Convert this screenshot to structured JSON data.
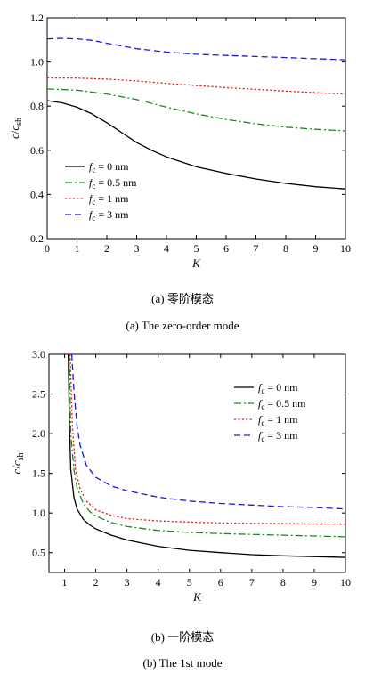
{
  "chart_data": [
    {
      "type": "line",
      "xlabel": "K",
      "ylabel": "c/c_sh",
      "xlim": [
        0,
        10
      ],
      "ylim": [
        0.2,
        1.2
      ],
      "xticks": [
        "0",
        "1",
        "2",
        "3",
        "4",
        "5",
        "6",
        "7",
        "8",
        "9",
        "10"
      ],
      "yticks": [
        "0.2",
        "0.4",
        "0.6",
        "0.8",
        "1.0",
        "1.2"
      ],
      "legend_position": "bottom-left",
      "captions": [
        "(a) 零阶模态",
        "(a) The zero-order mode"
      ],
      "series": [
        {
          "name": "f_c = 0 nm",
          "color": "#000000",
          "dash": "solid",
          "x": [
            0,
            0.5,
            1,
            1.5,
            2,
            2.5,
            3,
            3.5,
            4,
            5,
            6,
            7,
            8,
            9,
            10
          ],
          "y": [
            0.825,
            0.815,
            0.795,
            0.765,
            0.725,
            0.68,
            0.635,
            0.6,
            0.57,
            0.525,
            0.495,
            0.47,
            0.45,
            0.435,
            0.425
          ]
        },
        {
          "name": "f_c = 0.5 nm",
          "color": "#1a8a1a",
          "dash": "dashdot",
          "x": [
            0,
            1,
            2,
            3,
            4,
            5,
            6,
            7,
            8,
            9,
            10
          ],
          "y": [
            0.878,
            0.872,
            0.855,
            0.83,
            0.795,
            0.765,
            0.74,
            0.72,
            0.705,
            0.695,
            0.688
          ]
        },
        {
          "name": "f_c = 1 nm",
          "color": "#e02020",
          "dash": "dotted",
          "x": [
            0,
            1,
            2,
            3,
            4,
            5,
            6,
            7,
            8,
            9,
            10
          ],
          "y": [
            0.928,
            0.927,
            0.922,
            0.914,
            0.903,
            0.893,
            0.884,
            0.876,
            0.868,
            0.861,
            0.855
          ]
        },
        {
          "name": "f_c = 3 nm",
          "color": "#1a1adc",
          "dash": "dashed",
          "x": [
            0,
            0.5,
            1,
            1.5,
            2,
            3,
            4,
            5,
            6,
            7,
            8,
            9,
            10
          ],
          "y": [
            1.105,
            1.107,
            1.105,
            1.098,
            1.085,
            1.06,
            1.045,
            1.035,
            1.03,
            1.025,
            1.02,
            1.015,
            1.01
          ]
        }
      ]
    },
    {
      "type": "line",
      "xlabel": "K",
      "ylabel": "c/c_sh",
      "xlim": [
        0.5,
        10
      ],
      "ylim": [
        0.25,
        3.0
      ],
      "xticks": [
        "1",
        "2",
        "3",
        "4",
        "5",
        "6",
        "7",
        "8",
        "9",
        "10"
      ],
      "yticks": [
        "0.5",
        "1.0",
        "1.5",
        "2.0",
        "2.5",
        "3.0"
      ],
      "legend_position": "top-right",
      "captions": [
        "(b) 一阶模态",
        "(b) The 1st mode"
      ],
      "series": [
        {
          "name": "f_c = 0 nm",
          "color": "#000000",
          "dash": "solid",
          "x": [
            1.12,
            1.15,
            1.2,
            1.3,
            1.4,
            1.6,
            1.8,
            2,
            2.5,
            3,
            4,
            5,
            6,
            7,
            8,
            9,
            10
          ],
          "y": [
            3.0,
            2.2,
            1.55,
            1.2,
            1.05,
            0.92,
            0.85,
            0.8,
            0.72,
            0.66,
            0.58,
            0.53,
            0.5,
            0.475,
            0.46,
            0.45,
            0.44
          ]
        },
        {
          "name": "f_c = 0.5 nm",
          "color": "#1a8a1a",
          "dash": "dashdot",
          "x": [
            1.15,
            1.2,
            1.3,
            1.4,
            1.6,
            1.8,
            2,
            2.5,
            3,
            4,
            5,
            6,
            7,
            8,
            9,
            10
          ],
          "y": [
            3.0,
            2.0,
            1.55,
            1.32,
            1.12,
            1.02,
            0.96,
            0.88,
            0.83,
            0.78,
            0.755,
            0.74,
            0.73,
            0.72,
            0.71,
            0.7
          ]
        },
        {
          "name": "f_c = 1 nm",
          "color": "#e02020",
          "dash": "dotted",
          "x": [
            1.18,
            1.25,
            1.35,
            1.5,
            1.7,
            2,
            2.5,
            3,
            4,
            5,
            6,
            7,
            8,
            9,
            10
          ],
          "y": [
            3.0,
            2.1,
            1.55,
            1.3,
            1.15,
            1.04,
            0.97,
            0.93,
            0.9,
            0.885,
            0.875,
            0.87,
            0.865,
            0.862,
            0.86
          ]
        },
        {
          "name": "f_c = 3 nm",
          "color": "#1a1adc",
          "dash": "dashed",
          "x": [
            1.23,
            1.3,
            1.4,
            1.5,
            1.7,
            2,
            2.5,
            3,
            4,
            5,
            6,
            7,
            8,
            9,
            10
          ],
          "y": [
            3.0,
            2.55,
            2.1,
            1.85,
            1.6,
            1.45,
            1.34,
            1.28,
            1.2,
            1.15,
            1.12,
            1.1,
            1.08,
            1.07,
            1.05
          ]
        }
      ]
    }
  ],
  "legend": {
    "f": "f",
    "c": "c",
    "entries": [
      " = 0 nm",
      " = 0.5 nm",
      " = 1 nm",
      " = 3 nm"
    ]
  },
  "axis_text": {
    "ylabel_c": "c",
    "ylabel_slash": "/",
    "ylabel_c2": "c",
    "ylabel_sub": "sh",
    "xlabel": "K"
  }
}
